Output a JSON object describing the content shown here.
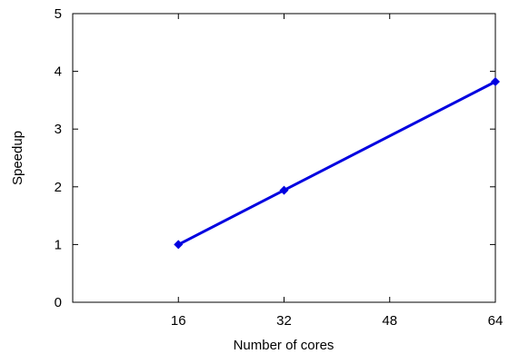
{
  "chart_data": {
    "type": "line",
    "title": "",
    "xlabel": "Number of cores",
    "ylabel": "Speedup",
    "xlim": [
      0,
      64
    ],
    "ylim": [
      0,
      5
    ],
    "xticks": [
      16,
      32,
      48,
      64
    ],
    "yticks": [
      0,
      1,
      2,
      3,
      4,
      5
    ],
    "grid": false,
    "series": [
      {
        "x": [
          16,
          32,
          64
        ],
        "y": [
          1.0,
          1.94,
          3.82
        ],
        "color": "#0000e0",
        "marker": "diamond"
      }
    ]
  }
}
